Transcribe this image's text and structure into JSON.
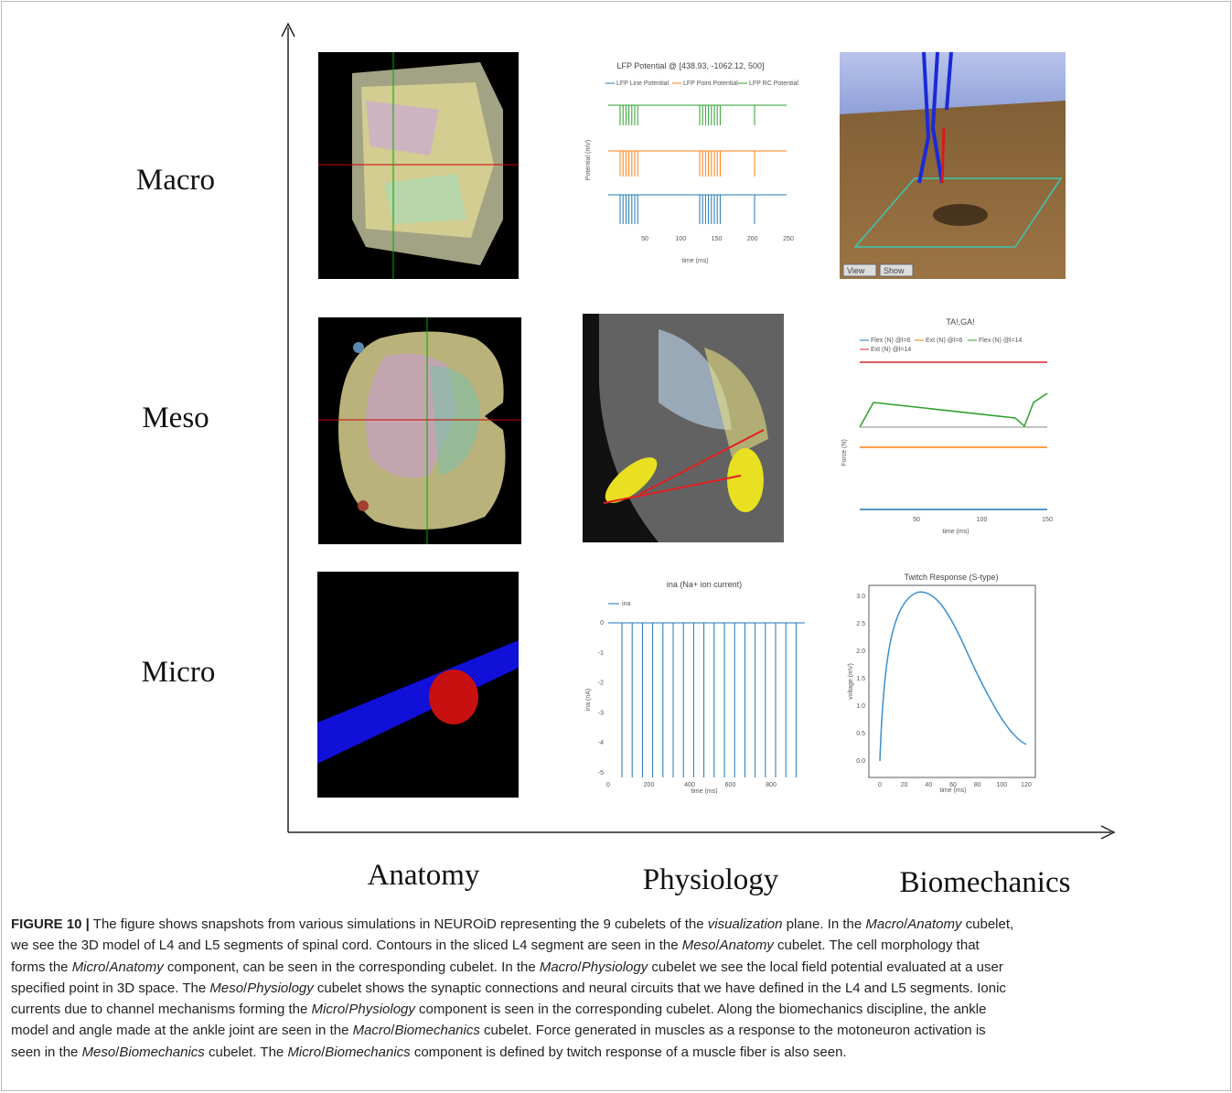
{
  "rows": [
    "Macro",
    "Meso",
    "Micro"
  ],
  "columns": [
    "Anatomy",
    "Physiology",
    "Biomechanics"
  ],
  "macro_physiology": {
    "title": "LFP Potential @ [438.93, -1062.12, 500]",
    "legend": [
      "LFP Line Potential",
      "LFP Point Potential",
      "LFP RC Potential"
    ],
    "ylabel": "Potential (mV)",
    "xlabel": "time (ms)",
    "xticks": [
      "50",
      "100",
      "150",
      "200",
      "250"
    ]
  },
  "macro_biomechanics": {
    "buttons": [
      "View",
      "Show"
    ]
  },
  "meso_biomechanics": {
    "title": "TA!,GA!",
    "legend": [
      "Flex (N) @l=6",
      "Ext (N) @l=6",
      "Flex (N) @l=14",
      "Ext (N) @l=14"
    ],
    "ylabel": "Force (N)",
    "xlabel": "time (ms)",
    "xticks": [
      "50",
      "100",
      "150"
    ]
  },
  "micro_physiology": {
    "title": "ina (Na+ ion current)",
    "legend": [
      "ina"
    ],
    "ylabel": "ina (nA)",
    "xlabel": "time (ms)",
    "yticks": [
      "0",
      "-1",
      "-2",
      "-3",
      "-4",
      "-5"
    ],
    "xticks": [
      "0",
      "200",
      "400",
      "600",
      "800"
    ]
  },
  "micro_biomechanics": {
    "title": "Twitch Response (S-type)",
    "ylabel": "voltage (mV)",
    "xlabel": "time (ms)",
    "yticks": [
      "0.0",
      "0.5",
      "1.0",
      "1.5",
      "2.0",
      "2.5",
      "3.0"
    ],
    "xticks": [
      "0",
      "20",
      "40",
      "60",
      "80",
      "100",
      "120"
    ]
  },
  "caption": {
    "lines": [
      [
        {
          "b": "FIGURE 10 |"
        },
        " The figure shows snapshots from various simulations in NEUROiD representing the 9 cubelets of the ",
        {
          "i": "visualization"
        },
        " plane. In the ",
        {
          "i": "Macro"
        },
        "/",
        {
          "i": "Anatomy"
        },
        " cubelet,"
      ],
      [
        "we see the 3D model of L4 and L5 segments of spinal cord. Contours in the sliced L4 segment are seen in the ",
        {
          "i": "Meso"
        },
        "/",
        {
          "i": "Anatomy"
        },
        " cubelet. The cell morphology that"
      ],
      [
        "forms the ",
        {
          "i": "Micro"
        },
        "/",
        {
          "i": "Anatomy"
        },
        " component, can be seen in the corresponding cubelet. In the ",
        {
          "i": "Macro"
        },
        "/",
        {
          "i": "Physiology"
        },
        " cubelet we see the local field potential evaluated at a user"
      ],
      [
        "specified point in 3D space. The ",
        {
          "i": "Meso"
        },
        "/",
        {
          "i": "Physiology"
        },
        " cubelet shows the synaptic connections and neural circuits that we have defined in the L4 and L5 segments. Ionic"
      ],
      [
        "currents due to channel mechanisms forming the ",
        {
          "i": "Micro"
        },
        "/",
        {
          "i": "Physiology"
        },
        " component is seen in the corresponding cubelet. Along the biomechanics discipline, the ankle"
      ],
      [
        "model and angle made at the ankle joint are seen in the ",
        {
          "i": "Macro"
        },
        "/",
        {
          "i": "Biomechanics"
        },
        " cubelet. Force generated in muscles as a response to the motoneuron activation is"
      ],
      [
        "seen in the ",
        {
          "i": "Meso"
        },
        "/",
        {
          "i": "Biomechanics"
        },
        " cubelet. The ",
        {
          "i": "Micro"
        },
        "/",
        {
          "i": "Biomechanics"
        },
        " component is defined by twitch response of a muscle fiber is also seen."
      ]
    ]
  }
}
